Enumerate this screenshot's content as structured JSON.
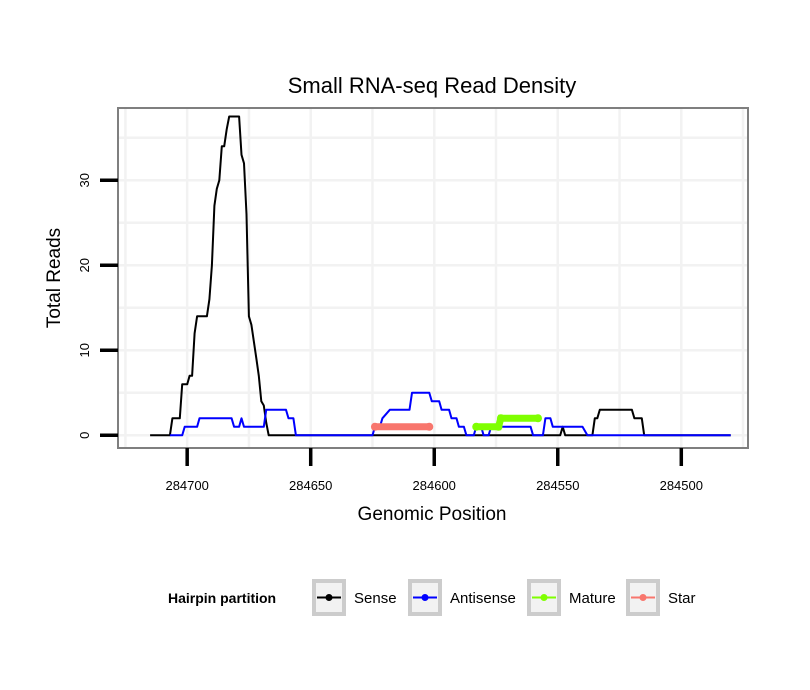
{
  "chart_data": {
    "type": "line",
    "title": "Small RNA-seq Read Density",
    "xlabel": "Genomic Position",
    "ylabel": "Total Reads",
    "x_reversed": true,
    "xlim": [
      284728,
      284473
    ],
    "ylim": [
      -1.5,
      38.5
    ],
    "x_ticks": [
      284700,
      284650,
      284600,
      284550,
      284500
    ],
    "x_tick_labels": [
      "284700",
      "284650",
      "284600",
      "284550",
      "284500"
    ],
    "y_ticks": [
      0,
      10,
      20,
      30
    ],
    "y_tick_labels": [
      "0",
      "10",
      "20",
      "30"
    ],
    "grid": true,
    "legend": {
      "title": "Hairpin partition",
      "position": "bottom",
      "entries": [
        {
          "label": "Sense",
          "color": "#000000"
        },
        {
          "label": "Antisense",
          "color": "#0000ff"
        },
        {
          "label": "Mature",
          "color": "#7fff00"
        },
        {
          "label": "Star",
          "color": "#f8766d"
        }
      ]
    },
    "series": [
      {
        "name": "Sense",
        "color": "#000000",
        "points": [
          [
            284715,
            0
          ],
          [
            284707,
            0
          ],
          [
            284706,
            2
          ],
          [
            284703,
            2
          ],
          [
            284702,
            6
          ],
          [
            284700,
            6
          ],
          [
            284699,
            7
          ],
          [
            284698,
            7
          ],
          [
            284697,
            12
          ],
          [
            284696,
            14
          ],
          [
            284692,
            14
          ],
          [
            284691,
            16
          ],
          [
            284690,
            20
          ],
          [
            284689,
            27
          ],
          [
            284688,
            29
          ],
          [
            284687,
            30
          ],
          [
            284686,
            34
          ],
          [
            284685,
            34
          ],
          [
            284684,
            36
          ],
          [
            284683,
            37.5
          ],
          [
            284679,
            37.5
          ],
          [
            284678,
            33
          ],
          [
            284677,
            32
          ],
          [
            284676,
            26
          ],
          [
            284675,
            14
          ],
          [
            284674,
            13
          ],
          [
            284673,
            11
          ],
          [
            284672,
            9
          ],
          [
            284671,
            7
          ],
          [
            284670,
            4
          ],
          [
            284669,
            3.5
          ],
          [
            284668,
            1.5
          ],
          [
            284667,
            0
          ],
          [
            284615,
            0
          ],
          [
            284614,
            0
          ],
          [
            284550,
            0
          ],
          [
            284549,
            0
          ],
          [
            284548,
            1
          ],
          [
            284547,
            0
          ],
          [
            284536,
            0
          ],
          [
            284535,
            2
          ],
          [
            284534,
            2
          ],
          [
            284533,
            3
          ],
          [
            284520,
            3
          ],
          [
            284519,
            2
          ],
          [
            284516,
            2
          ],
          [
            284515,
            0
          ],
          [
            284480,
            0
          ]
        ]
      },
      {
        "name": "Antisense",
        "color": "#0000ff",
        "points": [
          [
            284707,
            0
          ],
          [
            284702,
            0
          ],
          [
            284701,
            1
          ],
          [
            284696,
            1
          ],
          [
            284695,
            2
          ],
          [
            284682,
            2
          ],
          [
            284681,
            1
          ],
          [
            284679,
            1
          ],
          [
            284678,
            2
          ],
          [
            284677,
            1
          ],
          [
            284669,
            1
          ],
          [
            284668,
            3
          ],
          [
            284665,
            3
          ],
          [
            284664,
            3
          ],
          [
            284660,
            3
          ],
          [
            284659,
            2
          ],
          [
            284657,
            2
          ],
          [
            284656,
            0
          ],
          [
            284625,
            0
          ],
          [
            284624,
            1
          ],
          [
            284622,
            1
          ],
          [
            284621,
            2
          ],
          [
            284618,
            3
          ],
          [
            284610,
            3
          ],
          [
            284609,
            5
          ],
          [
            284602,
            5
          ],
          [
            284601,
            4
          ],
          [
            284598,
            4
          ],
          [
            284597,
            3
          ],
          [
            284594,
            3
          ],
          [
            284593,
            2
          ],
          [
            284591,
            2
          ],
          [
            284590,
            1
          ],
          [
            284588,
            1
          ],
          [
            284587,
            0
          ],
          [
            284584,
            0
          ],
          [
            284583,
            1
          ],
          [
            284581,
            1
          ],
          [
            284580,
            0
          ],
          [
            284578,
            0
          ],
          [
            284577,
            1
          ],
          [
            284561,
            1
          ],
          [
            284560,
            0
          ],
          [
            284556,
            0
          ],
          [
            284555,
            2
          ],
          [
            284553,
            2
          ],
          [
            284552,
            1
          ],
          [
            284540,
            1
          ],
          [
            284538,
            0
          ],
          [
            284480,
            0
          ]
        ]
      },
      {
        "name": "Mature",
        "color": "#7fff00",
        "points": [
          [
            284583,
            1
          ],
          [
            284574,
            1
          ],
          [
            284573,
            2
          ],
          [
            284558,
            2
          ]
        ]
      },
      {
        "name": "Star",
        "color": "#f8766d",
        "points": [
          [
            284624,
            1
          ],
          [
            284602,
            1
          ]
        ]
      }
    ]
  }
}
